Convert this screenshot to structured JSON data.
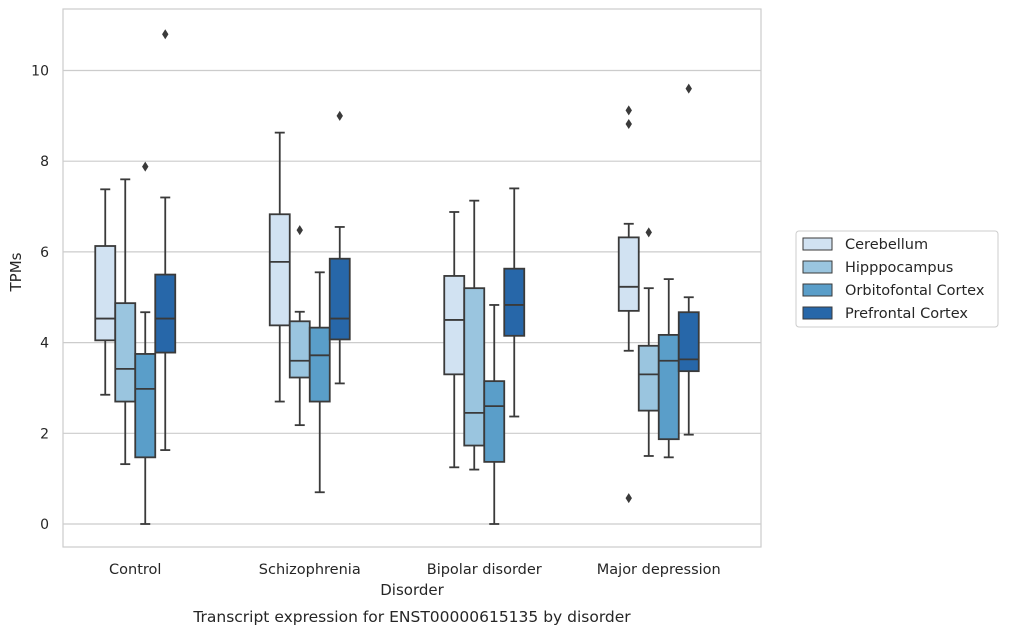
{
  "chart_data": {
    "type": "box",
    "title": "",
    "caption": "Transcript expression for ENST00000615135 by disorder",
    "xlabel": "Disorder",
    "ylabel": "TPMs",
    "ylim": [
      -0.5,
      11.35
    ],
    "yticks": [
      0,
      2,
      4,
      6,
      8,
      10
    ],
    "grid": "horizontal",
    "legend_position": "right",
    "categories": [
      "Control",
      "Schizophrenia",
      "Bipolar disorder",
      "Major depression"
    ],
    "series": [
      {
        "name": "Cerebellum",
        "color": "#d1e2f2",
        "boxes": [
          {
            "whisker_low": 2.85,
            "q1": 4.05,
            "median": 4.53,
            "q3": 6.13,
            "whisker_high": 7.38,
            "outliers": []
          },
          {
            "whisker_low": 2.7,
            "q1": 4.38,
            "median": 5.78,
            "q3": 6.83,
            "whisker_high": 8.63,
            "outliers": []
          },
          {
            "whisker_low": 1.25,
            "q1": 3.3,
            "median": 4.5,
            "q3": 5.47,
            "whisker_high": 6.88,
            "outliers": []
          },
          {
            "whisker_low": 3.82,
            "q1": 4.7,
            "median": 5.23,
            "q3": 6.32,
            "whisker_high": 6.62,
            "outliers": [
              0.57,
              8.82,
              9.12
            ]
          }
        ]
      },
      {
        "name": "Hipppocampus",
        "color": "#9ac5df",
        "boxes": [
          {
            "whisker_low": 1.32,
            "q1": 2.7,
            "median": 3.42,
            "q3": 4.87,
            "whisker_high": 7.6,
            "outliers": []
          },
          {
            "whisker_low": 2.18,
            "q1": 3.23,
            "median": 3.6,
            "q3": 4.47,
            "whisker_high": 4.68,
            "outliers": [
              6.48
            ]
          },
          {
            "whisker_low": 1.2,
            "q1": 1.73,
            "median": 2.45,
            "q3": 5.2,
            "whisker_high": 7.13,
            "outliers": []
          },
          {
            "whisker_low": 1.5,
            "q1": 2.5,
            "median": 3.3,
            "q3": 3.93,
            "whisker_high": 5.2,
            "outliers": [
              6.43
            ]
          }
        ]
      },
      {
        "name": "Orbitofontal Cortex",
        "color": "#5a9ec9",
        "boxes": [
          {
            "whisker_low": 0.0,
            "q1": 1.47,
            "median": 2.98,
            "q3": 3.75,
            "whisker_high": 4.67,
            "outliers": [
              7.88
            ]
          },
          {
            "whisker_low": 0.7,
            "q1": 2.7,
            "median": 3.72,
            "q3": 4.33,
            "whisker_high": 5.55,
            "outliers": []
          },
          {
            "whisker_low": 0.0,
            "q1": 1.37,
            "median": 2.6,
            "q3": 3.15,
            "whisker_high": 4.83,
            "outliers": []
          },
          {
            "whisker_low": 1.47,
            "q1": 1.87,
            "median": 3.6,
            "q3": 4.17,
            "whisker_high": 5.4,
            "outliers": []
          }
        ]
      },
      {
        "name": "Prefrontal Cortex",
        "color": "#2767a9",
        "boxes": [
          {
            "whisker_low": 1.63,
            "q1": 3.78,
            "median": 4.53,
            "q3": 5.5,
            "whisker_high": 7.2,
            "outliers": [
              10.8
            ]
          },
          {
            "whisker_low": 3.1,
            "q1": 4.07,
            "median": 4.53,
            "q3": 5.85,
            "whisker_high": 6.55,
            "outliers": [
              9.0
            ]
          },
          {
            "whisker_low": 2.37,
            "q1": 4.15,
            "median": 4.83,
            "q3": 5.63,
            "whisker_high": 7.4,
            "outliers": []
          },
          {
            "whisker_low": 1.97,
            "q1": 3.37,
            "median": 3.63,
            "q3": 4.67,
            "whisker_high": 5.0,
            "outliers": [
              9.6
            ]
          }
        ]
      }
    ]
  }
}
